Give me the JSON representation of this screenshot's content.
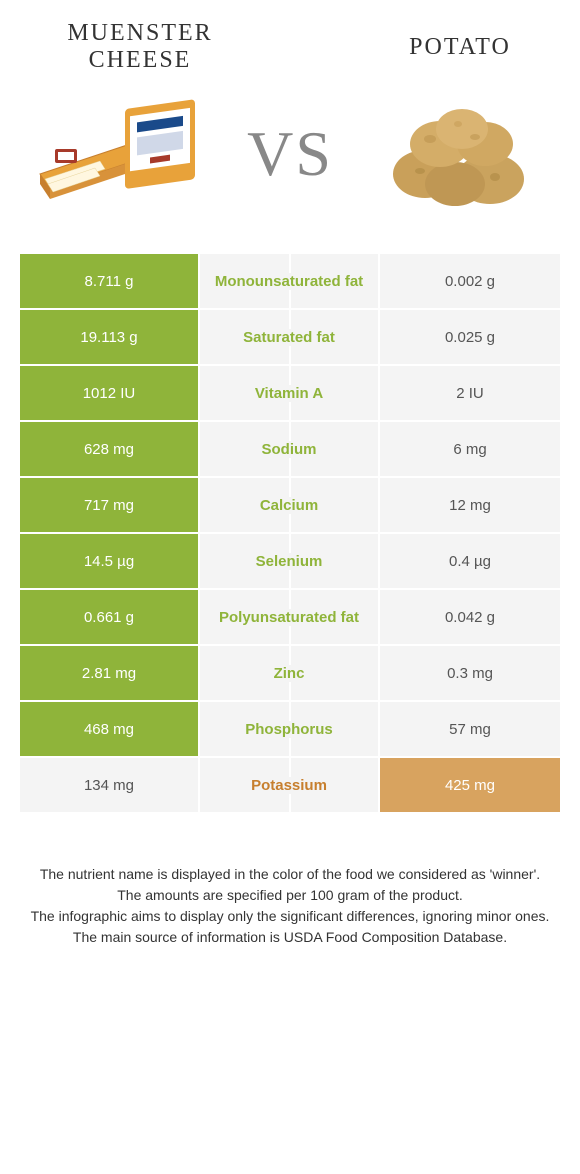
{
  "header": {
    "left_title": "Muenster cheese",
    "right_title": "Potato",
    "vs_text": "VS"
  },
  "colors": {
    "left_winner_bg": "#8fb43a",
    "right_winner_bg": "#d8a35f",
    "neutral_bg": "#f4f4f4",
    "left_winner_text": "#8fb43a",
    "right_winner_text": "#c77f2e",
    "row_border": "#ffffff"
  },
  "table": {
    "rows": [
      {
        "left": "8.711 g",
        "label": "Monounsaturated fat",
        "right": "0.002 g",
        "winner": "left"
      },
      {
        "left": "19.113 g",
        "label": "Saturated fat",
        "right": "0.025 g",
        "winner": "left"
      },
      {
        "left": "1012 IU",
        "label": "Vitamin A",
        "right": "2 IU",
        "winner": "left"
      },
      {
        "left": "628 mg",
        "label": "Sodium",
        "right": "6 mg",
        "winner": "left"
      },
      {
        "left": "717 mg",
        "label": "Calcium",
        "right": "12 mg",
        "winner": "left"
      },
      {
        "left": "14.5 µg",
        "label": "Selenium",
        "right": "0.4 µg",
        "winner": "left"
      },
      {
        "left": "0.661 g",
        "label": "Polyunsaturated fat",
        "right": "0.042 g",
        "winner": "left"
      },
      {
        "left": "2.81 mg",
        "label": "Zinc",
        "right": "0.3 mg",
        "winner": "left"
      },
      {
        "left": "468 mg",
        "label": "Phosphorus",
        "right": "57 mg",
        "winner": "left"
      },
      {
        "left": "134 mg",
        "label": "Potassium",
        "right": "425 mg",
        "winner": "right"
      }
    ]
  },
  "footer": {
    "lines": [
      "The nutrient name is displayed in the color of the food we considered as 'winner'.",
      "The amounts are specified per 100 gram of the product.",
      "The infographic aims to display only the significant differences, ignoring minor ones.",
      "The main source of information is USDA Food Composition Database."
    ]
  }
}
